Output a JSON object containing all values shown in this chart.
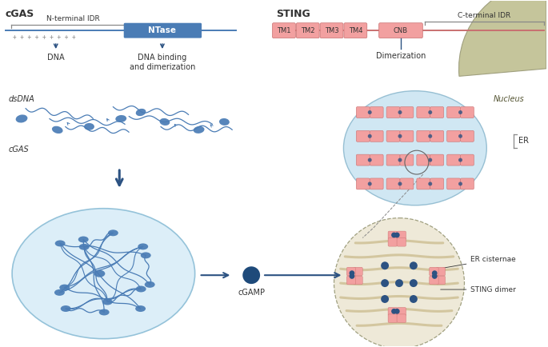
{
  "cgas_color": "#4a7cb5",
  "cgas_dark": "#2c5f8a",
  "cgas_mid": "#5588bb",
  "pink": "#f2a0a0",
  "pink_dark": "#c97070",
  "pink_light": "#f8c8c8",
  "bg_blue": "#cce3f0",
  "bg_blue_light": "#daeef8",
  "bg_tan": "#e8dfc8",
  "bg_green": "#bfbf90",
  "text_col": "#333333",
  "gray": "#888888",
  "dark_blue": "#2c5282",
  "cgamp_col": "#1e4a7a",
  "white": "#ffffff",
  "cgas_label": "cGAS",
  "sting_label": "STING",
  "nterminal_label": "N-terminal IDR",
  "cterminal_label": "C-terminal IDR",
  "ntase_label": "NTase",
  "tm_labels": [
    "TM1",
    "TM2",
    "TM3",
    "TM4",
    "CNB"
  ],
  "plus_label": "+ + + + + + + + +",
  "dna_label": "DNA",
  "dna_binding_label": "DNA binding\nand dimerization",
  "dsdna_label": "dsDNA",
  "cgas_mol_label": "cGAS",
  "cgamp_label": "cGAMP",
  "dimerization_label": "Dimerization",
  "nucleus_label": "Nucleus",
  "er_label": "ER",
  "er_cisternae_label": "ER cisternae",
  "sting_dimer_label": "STING dimer"
}
